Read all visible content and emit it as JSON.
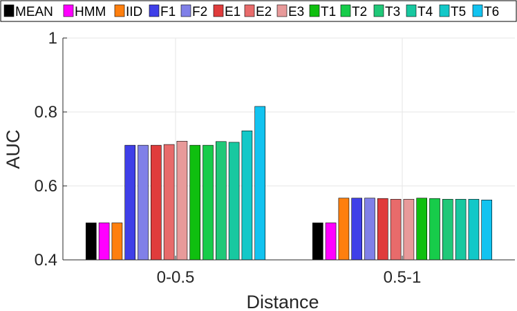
{
  "chart_data": {
    "type": "bar",
    "title": "",
    "xlabel": "Distance",
    "ylabel": "AUC",
    "categories": [
      "0-0.5",
      "0.5-1"
    ],
    "ylim": [
      0.4,
      1
    ],
    "yticks": [
      0.4,
      0.6,
      0.8,
      1
    ],
    "ytick_labels": [
      "0.4",
      "0.6",
      "0.8",
      "1"
    ],
    "grid": true,
    "legend_position": "top",
    "series": [
      {
        "name": "MEAN",
        "color": "#000000",
        "values": [
          0.5,
          0.5
        ]
      },
      {
        "name": "HMM",
        "color": "#ff00ff",
        "values": [
          0.5,
          0.5
        ]
      },
      {
        "name": "IID",
        "color": "#ff7f0e",
        "values": [
          0.5,
          0.567
        ]
      },
      {
        "name": "F1",
        "color": "#3f3fe8",
        "values": [
          0.71,
          0.567
        ]
      },
      {
        "name": "F2",
        "color": "#8080e8",
        "values": [
          0.71,
          0.567
        ]
      },
      {
        "name": "E1",
        "color": "#e03c3c",
        "values": [
          0.71,
          0.566
        ]
      },
      {
        "name": "E2",
        "color": "#e86b6b",
        "values": [
          0.712,
          0.564
        ]
      },
      {
        "name": "E3",
        "color": "#e89a9a",
        "values": [
          0.721,
          0.564
        ]
      },
      {
        "name": "T1",
        "color": "#0fbf0f",
        "values": [
          0.71,
          0.567
        ]
      },
      {
        "name": "T2",
        "color": "#17cc4a",
        "values": [
          0.71,
          0.566
        ]
      },
      {
        "name": "T3",
        "color": "#20c878",
        "values": [
          0.72,
          0.564
        ]
      },
      {
        "name": "T4",
        "color": "#18c8a0",
        "values": [
          0.718,
          0.564
        ]
      },
      {
        "name": "T5",
        "color": "#12c8c8",
        "values": [
          0.749,
          0.564
        ]
      },
      {
        "name": "T6",
        "color": "#12c3f0",
        "values": [
          0.815,
          0.562
        ]
      }
    ]
  }
}
